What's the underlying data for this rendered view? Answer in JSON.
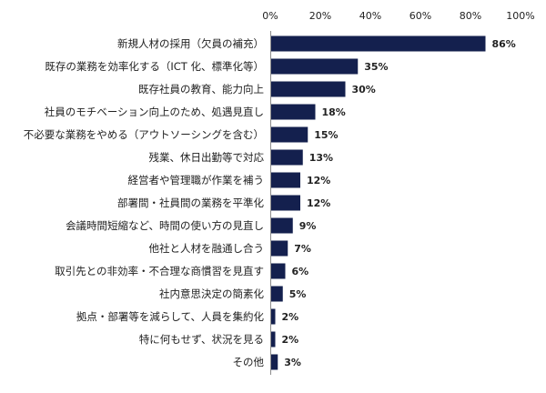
{
  "chart_data": {
    "type": "bar",
    "orientation": "horizontal",
    "categories": [
      "新規人材の採用（欠員の補充）",
      "既存の業務を効率化する（ICT 化、標準化等）",
      "既存社員の教育、能力向上",
      "社員のモチベーション向上のため、処遇見直し",
      "不必要な業務をやめる（アウトソーシングを含む）",
      "残業、休日出勤等で対応",
      "経営者や管理職が作業を補う",
      "部署間・社員間の業務を平準化",
      "会議時間短縮など、時間の使い方の見直し",
      "他社と人材を融通し合う",
      "取引先との非効率・不合理な商慣習を見直す",
      "社内意思決定の簡素化",
      "拠点・部署等を減らして、人員を集約化",
      "特に何もせず、状況を見る",
      "その他"
    ],
    "values": [
      86,
      35,
      30,
      18,
      15,
      13,
      12,
      12,
      9,
      7,
      6,
      5,
      2,
      2,
      3
    ],
    "value_labels": [
      "86%",
      "35%",
      "30%",
      "18%",
      "15%",
      "13%",
      "12%",
      "12%",
      "9%",
      "7%",
      "6%",
      "5%",
      "2%",
      "2%",
      "3%"
    ],
    "xlim": [
      0,
      100
    ],
    "xticks": [
      0,
      20,
      40,
      60,
      80,
      100
    ],
    "xtick_labels": [
      "0%",
      "20%",
      "40%",
      "60%",
      "80%",
      "100%"
    ],
    "xaxis_position": "top",
    "grid": false,
    "colors": {
      "bar": "#14204e",
      "axis": "#8c8c8c",
      "text": "#222222"
    }
  }
}
